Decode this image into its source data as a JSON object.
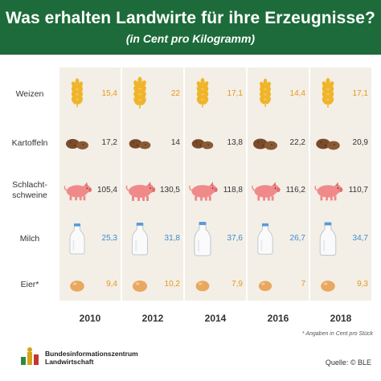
{
  "header": {
    "title": "Was erhalten Landwirte für ihre Erzeugnisse?",
    "subtitle": "(in Cent pro Kilogramm)"
  },
  "chart_data": {
    "type": "table",
    "categories": [
      "2010",
      "2012",
      "2014",
      "2016",
      "2018"
    ],
    "series": [
      {
        "name": "Weizen",
        "values": [
          15.4,
          22,
          17.1,
          14.4,
          17.1
        ],
        "labels": [
          "15,4",
          "22",
          "17,1",
          "14,4",
          "17,1"
        ],
        "icon": "wheat-icon",
        "color": "#e8961d"
      },
      {
        "name": "Kartoffeln",
        "values": [
          17.2,
          14,
          13.8,
          22.2,
          20.9
        ],
        "labels": [
          "17,2",
          "14",
          "13,8",
          "22,2",
          "20,9"
        ],
        "icon": "potato-icon",
        "color": "#333333"
      },
      {
        "name": "Schlacht-\nschweine",
        "values": [
          105.4,
          130.5,
          118.8,
          116.2,
          110.7
        ],
        "labels": [
          "105,4",
          "130,5",
          "118,8",
          "116,2",
          "110,7"
        ],
        "icon": "pig-icon",
        "color": "#333333"
      },
      {
        "name": "Milch",
        "values": [
          25.3,
          31.8,
          37.6,
          26.7,
          34.7
        ],
        "labels": [
          "25,3",
          "31,8",
          "37,6",
          "26,7",
          "34,7"
        ],
        "icon": "milk-bottle-icon",
        "color": "#3f8ccf"
      },
      {
        "name": "Eier*",
        "values": [
          9.4,
          10.2,
          7.9,
          7,
          9.3
        ],
        "labels": [
          "9,4",
          "10,2",
          "7,9",
          "7",
          "9,3"
        ],
        "icon": "egg-icon",
        "color": "#e8961d"
      }
    ]
  },
  "footnote": "* Angaben in Cent pro Stück",
  "footer": {
    "org_line1": "Bundesinformationszentrum",
    "org_line2": "Landwirtschaft",
    "source": "Quelle: © BLE"
  },
  "colors": {
    "header_green": "#1d6b3a",
    "column_bg": "#f3efe6",
    "wheat": "#f0b429",
    "potato": "#7a4a2a",
    "pig": "#f08a8a",
    "egg": "#e8a860",
    "milk_cap": "#5a9bd8"
  }
}
